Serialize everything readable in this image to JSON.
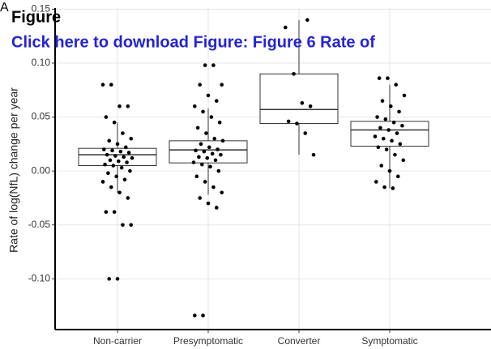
{
  "panel": "A",
  "header": {
    "title": "Figure",
    "link": "Click here to download Figure: Figure 6 Rate of"
  },
  "chart_data": {
    "type": "box",
    "ylabel": "Rate of log(NfL) change per year",
    "categories": [
      "Non-carrier",
      "Presymptomatic",
      "Converter",
      "Symptomatic"
    ],
    "ylim": [
      -0.147,
      0.151
    ],
    "yticks": [
      {
        "value": -0.1,
        "label": "-0.10"
      },
      {
        "value": -0.05,
        "label": "-0.05"
      },
      {
        "value": 0,
        "label": "0.00"
      },
      {
        "value": 0.05,
        "label": "0.05"
      },
      {
        "value": 0.1,
        "label": "0.10"
      },
      {
        "value": 0.15,
        "label": "0.15"
      }
    ],
    "grid": true,
    "boxes": [
      {
        "whisker_low": -0.02,
        "q1": 0.005,
        "median": 0.015,
        "q3": 0.021,
        "whisker_high": 0.045
      },
      {
        "whisker_low": -0.022,
        "q1": 0.0075,
        "median": 0.0195,
        "q3": 0.028,
        "whisker_high": 0.058
      },
      {
        "whisker_low": 0.015,
        "q1": 0.044,
        "median": 0.057,
        "q3": 0.09,
        "whisker_high": 0.14
      },
      {
        "whisker_low": -0.016,
        "q1": 0.023,
        "median": 0.038,
        "q3": 0.046,
        "whisker_high": 0.08
      }
    ],
    "points": [
      [
        0.08,
        0.08,
        0.06,
        0.06,
        0.05,
        0.045,
        0.035,
        0.03,
        0.028,
        0.025,
        0.022,
        0.02,
        0.019,
        0.018,
        0.017,
        0.015,
        0.014,
        0.013,
        0.012,
        0.01,
        0.009,
        0.008,
        0.006,
        0.005,
        0.003,
        0.0,
        -0.002,
        -0.005,
        -0.008,
        -0.01,
        -0.015,
        -0.02,
        -0.025,
        -0.038,
        -0.038,
        -0.05,
        -0.05,
        -0.1,
        -0.1
      ],
      [
        0.098,
        0.098,
        0.08,
        0.08,
        0.07,
        0.065,
        0.06,
        0.055,
        0.05,
        0.045,
        0.04,
        0.035,
        0.03,
        0.028,
        0.025,
        0.022,
        0.02,
        0.019,
        0.018,
        0.016,
        0.015,
        0.013,
        0.012,
        0.01,
        0.008,
        0.006,
        0.004,
        0.0,
        -0.005,
        -0.01,
        -0.015,
        -0.02,
        -0.025,
        -0.03,
        -0.034,
        -0.134,
        -0.134
      ],
      [
        0.14,
        0.133,
        0.09,
        0.063,
        0.06,
        0.046,
        0.044,
        0.035,
        0.015
      ],
      [
        0.086,
        0.086,
        0.08,
        0.07,
        0.065,
        0.06,
        0.055,
        0.05,
        0.048,
        0.045,
        0.042,
        0.04,
        0.038,
        0.035,
        0.032,
        0.03,
        0.028,
        0.025,
        0.022,
        0.02,
        0.015,
        0.01,
        0.005,
        0.0,
        -0.005,
        -0.01,
        -0.015,
        -0.016
      ]
    ],
    "box_color": "#333333",
    "point_color": "#000000"
  }
}
